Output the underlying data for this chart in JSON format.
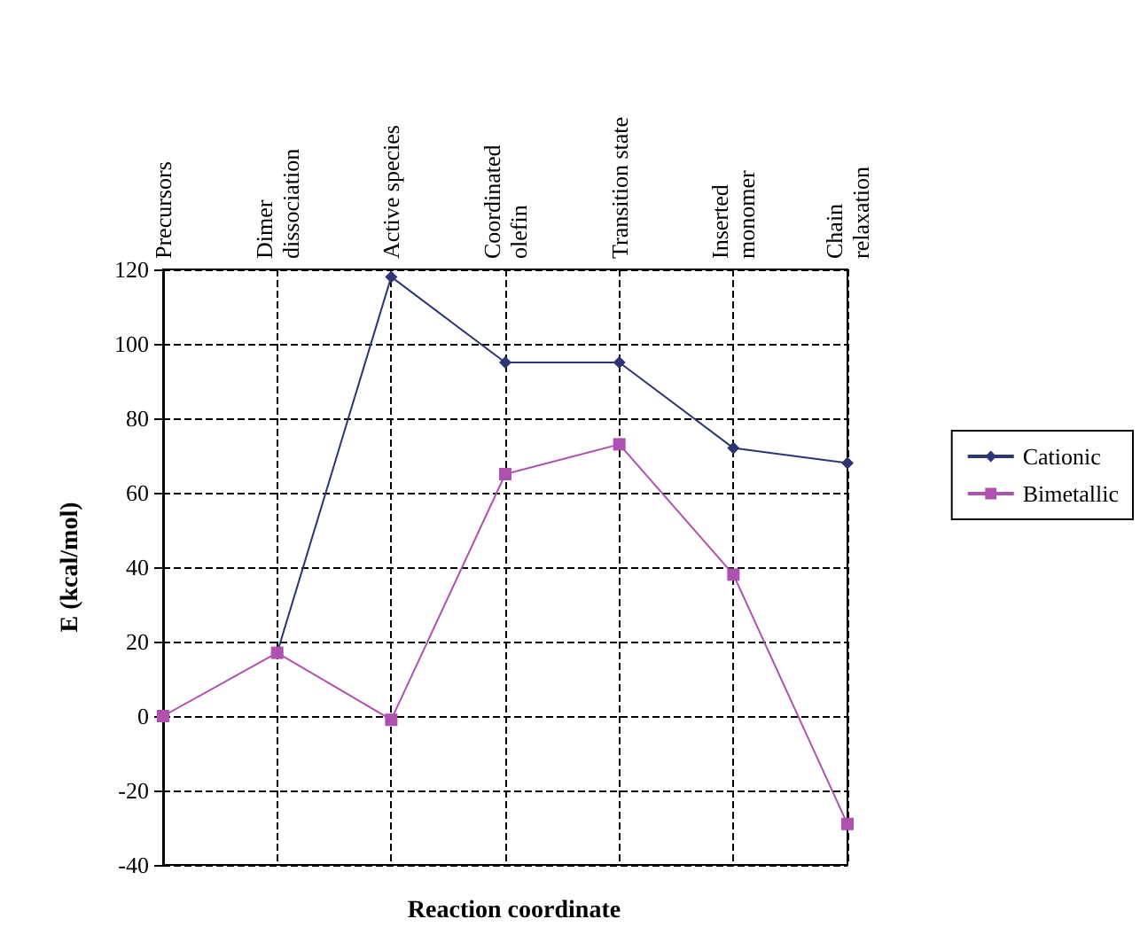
{
  "chart_data": {
    "type": "line",
    "xlabel": "Reaction coordinate",
    "ylabel": "E (kcal/mol)",
    "categories": [
      "Precursors",
      "Dimer\ndissociation",
      "Active species",
      "Coordinated\nolefin",
      "Transition state",
      "Inserted\nmonomer",
      "Chain\nrelaxation"
    ],
    "series": [
      {
        "name": "Cationic",
        "color": "#2e3573",
        "marker": "diamond",
        "values": [
          null,
          17,
          118,
          95,
          95,
          72,
          68
        ]
      },
      {
        "name": "Bimetallic",
        "color": "#b050b0",
        "marker": "square",
        "values": [
          0,
          17,
          -1,
          65,
          73,
          38,
          -29
        ]
      }
    ],
    "ylim": [
      -40,
      120
    ],
    "yticks": [
      -40,
      -20,
      0,
      20,
      40,
      60,
      80,
      100,
      120
    ],
    "grid": true,
    "legend": "right",
    "line_style": "solid"
  }
}
